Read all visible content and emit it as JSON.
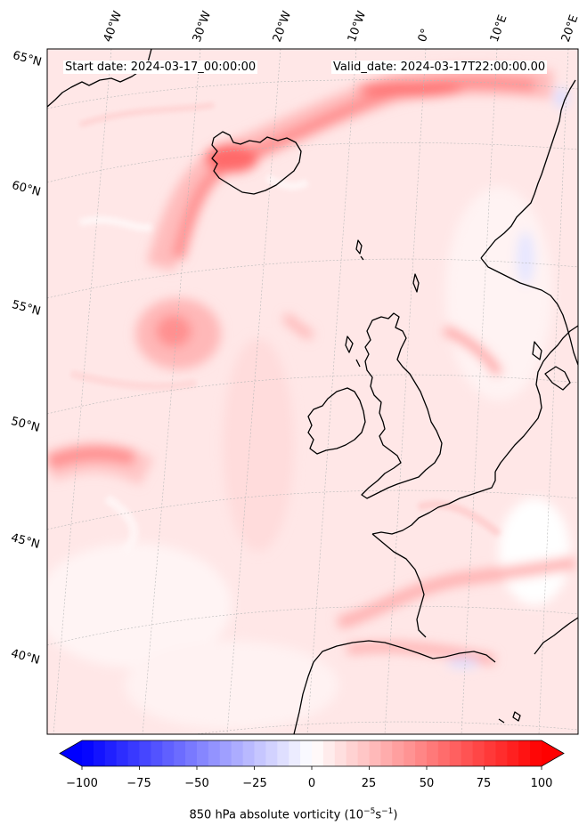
{
  "header": {
    "start_date": "Start date: 2024-03-17_00:00:00",
    "valid_date": "Valid_date: 2024-03-17T22:00:00.00"
  },
  "longitude_labels": [
    "40°W",
    "30°W",
    "20°W",
    "10°W",
    "0°",
    "10°E",
    "20°E"
  ],
  "latitude_labels": [
    "65°N",
    "60°N",
    "55°N",
    "50°N",
    "45°N",
    "40°N"
  ],
  "colorbar": {
    "ticks": [
      "−100",
      "−75",
      "−50",
      "−25",
      "0",
      "25",
      "50",
      "75",
      "100"
    ],
    "min": -100,
    "max": 100,
    "extend": "both",
    "cmap": "bwr",
    "title_prefix": "850 hPa absolute vorticity (10",
    "title_exp1": "−5",
    "title_mid": "s",
    "title_exp2": "−1",
    "title_suffix": ")"
  },
  "colors": {
    "land_outline": "#000000",
    "background": "#ffe8e8",
    "positive": "#ff0000",
    "negative": "#0000ff",
    "gridline": "#b0b0b0"
  }
}
